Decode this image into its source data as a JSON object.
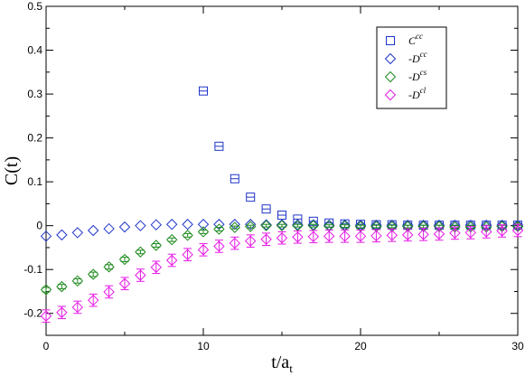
{
  "chart_data": {
    "type": "scatter",
    "ylabel": "C(t)",
    "xlabel_main": "t/a",
    "xlabel_sub": "t",
    "xlim": [
      0,
      30
    ],
    "ylim": [
      -0.25,
      0.5
    ],
    "xticks": [
      0,
      10,
      20,
      30
    ],
    "xtick_labels": [
      "0",
      "10",
      "20",
      "30"
    ],
    "yticks": [
      -0.2,
      -0.1,
      0,
      0.1,
      0.2,
      0.3,
      0.4,
      0.5
    ],
    "ytick_labels": [
      "-0.2",
      "-0.1",
      "0",
      "0.1",
      "0.2",
      "0.3",
      "0.4",
      "0.5"
    ],
    "grid": false,
    "legend_position": "top-right",
    "series": [
      {
        "legend_prefix": "C",
        "legend_sup": "cc",
        "marker": "square",
        "color": "#1f35c9",
        "errorbars": false,
        "x": [
          10,
          11,
          12,
          13,
          14,
          15,
          16,
          17,
          18,
          19,
          20,
          21,
          22,
          23,
          24,
          25,
          26,
          27,
          28,
          29,
          30
        ],
        "values": [
          0.307,
          0.181,
          0.107,
          0.065,
          0.038,
          0.024,
          0.015,
          0.01,
          0.006,
          0.004,
          0.003,
          0.002,
          0.002,
          0.001,
          0.001,
          0.001,
          0.001,
          0.001,
          0.001,
          0.001,
          0.001
        ]
      },
      {
        "legend_prefix": "-D",
        "legend_sup": "cc",
        "marker": "diamond",
        "color": "#1f35c9",
        "errorbars": false,
        "x": [
          0,
          1,
          2,
          3,
          4,
          5,
          6,
          7,
          8,
          9,
          10,
          11,
          12,
          13,
          14,
          15,
          16,
          17,
          18,
          19,
          20,
          21,
          22,
          23,
          24,
          25,
          26,
          27,
          28,
          29,
          30
        ],
        "values": [
          -0.024,
          -0.021,
          -0.016,
          -0.011,
          -0.007,
          -0.003,
          0.0,
          0.002,
          0.003,
          0.003,
          0.003,
          0.003,
          0.003,
          0.003,
          0.002,
          0.002,
          0.002,
          0.002,
          0.001,
          0.001,
          0.001,
          0.001,
          0.001,
          0.001,
          0.001,
          0.001,
          0.001,
          0.001,
          0.001,
          0.001,
          0.001
        ]
      },
      {
        "legend_prefix": "-D",
        "legend_sup": "cs",
        "marker": "diamond",
        "color": "#1e8a1e",
        "errorbars": true,
        "x": [
          0,
          1,
          2,
          3,
          4,
          5,
          6,
          7,
          8,
          9,
          10,
          11,
          12,
          13,
          14,
          15,
          16,
          17,
          18,
          19,
          20,
          21,
          22,
          23,
          24,
          25,
          26,
          27,
          28,
          29,
          30
        ],
        "values": [
          -0.146,
          -0.139,
          -0.126,
          -0.111,
          -0.094,
          -0.077,
          -0.06,
          -0.045,
          -0.032,
          -0.022,
          -0.014,
          -0.008,
          -0.004,
          -0.002,
          0.0,
          0.0,
          0.0,
          0.0,
          -0.001,
          -0.001,
          -0.002,
          -0.002,
          -0.002,
          -0.002,
          -0.002,
          -0.002,
          -0.003,
          -0.003,
          -0.003,
          -0.002,
          -0.002
        ],
        "errors": [
          0.005,
          0.005,
          0.005,
          0.005,
          0.005,
          0.005,
          0.004,
          0.004,
          0.004,
          0.004,
          0.004,
          0.004,
          0.003,
          0.003,
          0.003,
          0.003,
          0.003,
          0.003,
          0.003,
          0.003,
          0.003,
          0.003,
          0.003,
          0.003,
          0.003,
          0.003,
          0.003,
          0.003,
          0.003,
          0.003,
          0.003
        ]
      },
      {
        "legend_prefix": "-D",
        "legend_sup": "cl",
        "marker": "diamond",
        "color": "#e619e6",
        "errorbars": true,
        "x": [
          0,
          1,
          2,
          3,
          4,
          5,
          6,
          7,
          8,
          9,
          10,
          11,
          12,
          13,
          14,
          15,
          16,
          17,
          18,
          19,
          20,
          21,
          22,
          23,
          24,
          25,
          26,
          27,
          28,
          29,
          30
        ],
        "values": [
          -0.206,
          -0.198,
          -0.186,
          -0.17,
          -0.151,
          -0.132,
          -0.113,
          -0.095,
          -0.079,
          -0.066,
          -0.055,
          -0.047,
          -0.04,
          -0.035,
          -0.031,
          -0.028,
          -0.026,
          -0.025,
          -0.024,
          -0.024,
          -0.024,
          -0.023,
          -0.022,
          -0.021,
          -0.02,
          -0.019,
          -0.017,
          -0.016,
          -0.014,
          -0.012,
          -0.011
        ],
        "errors": [
          0.014,
          0.014,
          0.014,
          0.014,
          0.014,
          0.014,
          0.014,
          0.014,
          0.014,
          0.014,
          0.014,
          0.014,
          0.014,
          0.014,
          0.014,
          0.014,
          0.014,
          0.014,
          0.014,
          0.014,
          0.014,
          0.014,
          0.014,
          0.014,
          0.014,
          0.014,
          0.014,
          0.014,
          0.014,
          0.014,
          0.014
        ]
      }
    ]
  }
}
